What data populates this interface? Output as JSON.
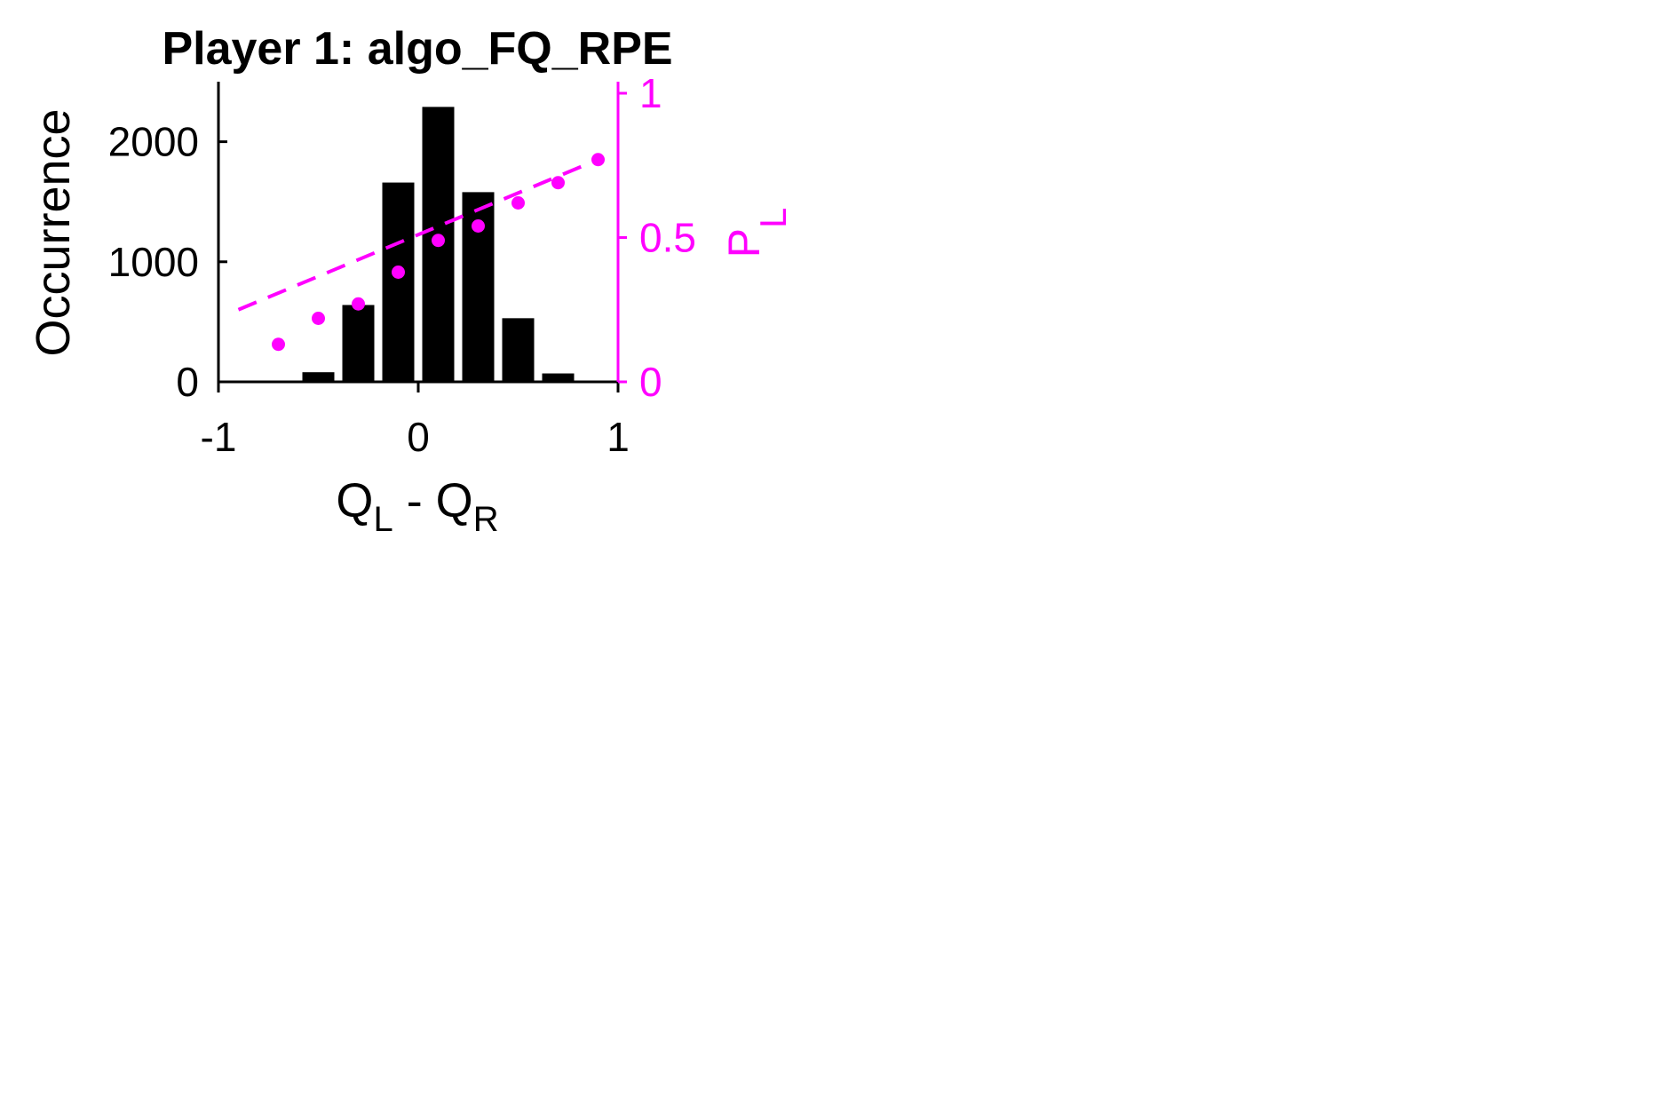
{
  "chart_data": {
    "type": "bar",
    "title": "Player 1: algo_FQ_RPE",
    "xlabel": {
      "main": "Q",
      "sub1": "L",
      "mid": " - Q",
      "sub2": "R"
    },
    "ylabel": "Occurrence",
    "y2label": {
      "main": "P",
      "sub": "L"
    },
    "xlim": [
      -1,
      1
    ],
    "ylim": [
      0,
      2500
    ],
    "y2lim": [
      0,
      1
    ],
    "x_ticks": [
      "-1",
      "0",
      "1"
    ],
    "y_ticks": [
      "0",
      "1000",
      "2000"
    ],
    "y2_ticks": [
      "0",
      "0.5",
      "1"
    ],
    "grid": false,
    "colors": {
      "bars": "#000000",
      "right_axis": "#ff00ff",
      "left_axis": "#000000"
    },
    "series": [
      {
        "type": "bar",
        "axis": "left",
        "x": [
          -0.5,
          -0.3,
          -0.1,
          0.1,
          0.3,
          0.5,
          0.7
        ],
        "values": [
          80,
          640,
          1660,
          2290,
          1580,
          530,
          70
        ],
        "bar_width": 0.16
      },
      {
        "type": "scatter",
        "axis": "right",
        "x": [
          -0.7,
          -0.5,
          -0.3,
          -0.1,
          0.1,
          0.3,
          0.5,
          0.7,
          0.9
        ],
        "values": [
          0.13,
          0.22,
          0.27,
          0.38,
          0.49,
          0.54,
          0.62,
          0.69,
          0.77
        ]
      },
      {
        "type": "line",
        "style": "dashed",
        "axis": "right",
        "x": [
          -0.9,
          0.9
        ],
        "values": [
          0.25,
          0.77
        ]
      }
    ]
  }
}
